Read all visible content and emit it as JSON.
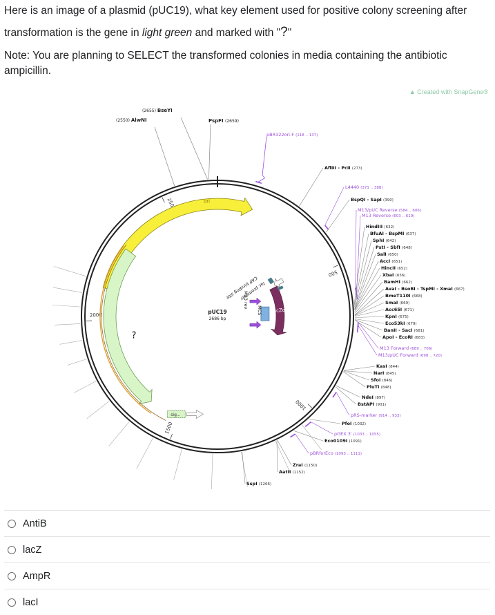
{
  "question": {
    "line1": "Here is an image of a plasmid (pUC19), what key element used for positive colony screening after",
    "line2_pre": "transformation is the gene in ",
    "line2_em": "light green",
    "line2_mid": " and marked with \"",
    "line2_mark": "?",
    "line2_post": "\"",
    "note_line1": "Note: You are planning to SELECT the transformed colonies in media containing the antibiotic",
    "note_line2": "ampicillin."
  },
  "watermark": "Created with SnapGene®",
  "plasmid": {
    "name": "pUC19",
    "size": "2686 bp",
    "total_bp": 2686,
    "scale_labels": [
      {
        "bp": 500,
        "text": "500"
      },
      {
        "bp": 1000,
        "text": "1000"
      },
      {
        "bp": 1500,
        "text": "1500"
      },
      {
        "bp": 2000,
        "text": "2000"
      },
      {
        "bp": 2500,
        "text": "2500"
      }
    ],
    "feature_labels": {
      "ori": "ori",
      "laczα": "lacZα",
      "sig": "sig...",
      "question_mark": "?",
      "cap": "CAP binding site",
      "lac_promoter": "lac promoter",
      "m13rev": "M13 rev",
      "mcs": "MCS"
    },
    "left_sites": [
      {
        "name": "BseYI",
        "pos": "(2655)"
      },
      {
        "name": "AlwNI",
        "pos": "(2550)"
      }
    ],
    "top_site": {
      "name": "PspFI",
      "pos": "(2659)"
    },
    "primer_top": {
      "name": "pBR322ori-F",
      "pos": "(118 .. 137)"
    },
    "right_sites": [
      {
        "name": "AflIII - PciI",
        "pos": "(273)",
        "primer": false
      },
      {
        "name": "L4440",
        "pos": "(371 .. 388)",
        "primer": true
      },
      {
        "name": "BspQI - SapI",
        "pos": "(390)",
        "primer": false
      },
      {
        "name": "M13/pUC Reverse",
        "pos": "(584 .. 606)",
        "primer": true
      },
      {
        "name": "M13 Reverse",
        "pos": "(603 .. 619)",
        "primer": true
      },
      {
        "name": "HindIII",
        "pos": "(632)",
        "primer": false
      },
      {
        "name": "BfuAI - BspMI",
        "pos": "(637)",
        "primer": false
      },
      {
        "name": "SphI",
        "pos": "(642)",
        "primer": false
      },
      {
        "name": "PstI - SbfI",
        "pos": "(648)",
        "primer": false
      },
      {
        "name": "SalI",
        "pos": "(650)",
        "primer": false
      },
      {
        "name": "AccI",
        "pos": "(651)",
        "primer": false
      },
      {
        "name": "HincII",
        "pos": "(652)",
        "primer": false
      },
      {
        "name": "XbaI",
        "pos": "(656)",
        "primer": false
      },
      {
        "name": "BamHI",
        "pos": "(662)",
        "primer": false
      },
      {
        "name": "AvaI - BsoBI - TspMI - XmaI",
        "pos": "(667)",
        "primer": false
      },
      {
        "name": "BmeT110I",
        "pos": "(668)",
        "primer": false
      },
      {
        "name": "SmaI",
        "pos": "(669)",
        "primer": false
      },
      {
        "name": "Acc65I",
        "pos": "(671)",
        "primer": false
      },
      {
        "name": "KpnI",
        "pos": "(675)",
        "primer": false
      },
      {
        "name": "Eco53kI",
        "pos": "(679)",
        "primer": false
      },
      {
        "name": "BanII - SacI",
        "pos": "(681)",
        "primer": false
      },
      {
        "name": "ApoI - EcoRI",
        "pos": "(683)",
        "primer": false
      },
      {
        "name": "M13 Forward",
        "pos": "(689 .. 706)",
        "primer": true
      },
      {
        "name": "M13/pUC Forward",
        "pos": "(698 .. 720)",
        "primer": true
      },
      {
        "name": "KasI",
        "pos": "(844)",
        "primer": false
      },
      {
        "name": "NarI",
        "pos": "(845)",
        "primer": false
      },
      {
        "name": "SfoI",
        "pos": "(846)",
        "primer": false
      },
      {
        "name": "PluTI",
        "pos": "(848)",
        "primer": false
      },
      {
        "name": "NdeI",
        "pos": "(897)",
        "primer": false
      },
      {
        "name": "BstAPI",
        "pos": "(901)",
        "primer": false
      },
      {
        "name": "pRS-marker",
        "pos": "(914 .. 933)",
        "primer": true
      },
      {
        "name": "PfoI",
        "pos": "(1032)",
        "primer": false
      },
      {
        "name": "pGEX 3'",
        "pos": "(1033 .. 1055)",
        "primer": true
      },
      {
        "name": "Eco0109I",
        "pos": "(1091)",
        "primer": false
      },
      {
        "name": "pBRforEco",
        "pos": "(1093 .. 1111)",
        "primer": true
      },
      {
        "name": "ZraI",
        "pos": "(1150)",
        "primer": false
      },
      {
        "name": "AatII",
        "pos": "(1152)",
        "primer": false
      },
      {
        "name": "SspI",
        "pos": "(1266)",
        "primer": false
      }
    ]
  },
  "options": [
    {
      "label": "AntiB"
    },
    {
      "label": "lacZ"
    },
    {
      "label": "AmpR"
    },
    {
      "label": "lacI"
    }
  ],
  "colors": {
    "ori": "#f7ef3a",
    "ori_stroke": "#8c8412",
    "ampr": "#d8f5c8",
    "ampr_stroke": "#6e9c56",
    "ampr_outline": "#e0a030",
    "lacz": "#7b2f5e",
    "primer": "#9b4fd8",
    "cap": "#4a7a8a",
    "backbone": "#222222"
  }
}
